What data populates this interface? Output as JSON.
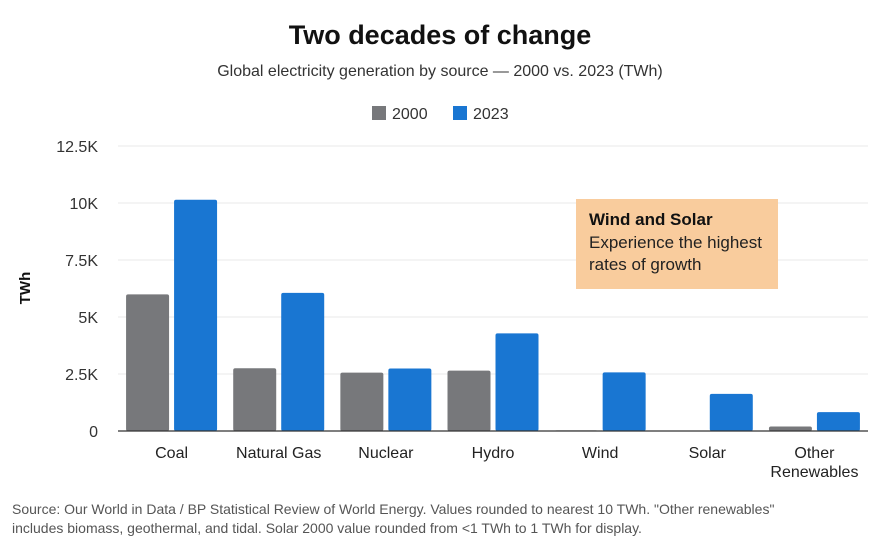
{
  "chart_data": {
    "type": "bar",
    "title": "Two decades of change",
    "subtitle": "Global electricity generation by source — 2000 vs. 2023 (TWh)",
    "ylabel": "TWh",
    "xlabel": "",
    "ylim": [
      0,
      12500
    ],
    "yticks": [
      {
        "value": 0,
        "label": "0"
      },
      {
        "value": 2500,
        "label": "2.5K"
      },
      {
        "value": 5000,
        "label": "5K"
      },
      {
        "value": 7500,
        "label": "7.5K"
      },
      {
        "value": 10000,
        "label": "10K"
      },
      {
        "value": 12500,
        "label": "12.5K"
      }
    ],
    "categories": [
      "Coal",
      "Natural Gas",
      "Nuclear",
      "Hydro",
      "Wind",
      "Solar",
      "Other Renewables"
    ],
    "category_lines": [
      [
        "Coal"
      ],
      [
        "Natural Gas"
      ],
      [
        "Nuclear"
      ],
      [
        "Hydro"
      ],
      [
        "Wind"
      ],
      [
        "Solar"
      ],
      [
        "Other",
        "Renewables"
      ]
    ],
    "series": [
      {
        "name": "2000",
        "color": "#77787b",
        "values": [
          5990,
          2750,
          2560,
          2650,
          30,
          1,
          200
        ]
      },
      {
        "name": "2023",
        "color": "#1976d2",
        "values": [
          10140,
          6060,
          2740,
          4280,
          2570,
          1630,
          830
        ]
      }
    ],
    "grid": true,
    "legend_position": "top-center",
    "annotation": {
      "title": "Wind and Solar",
      "lines": [
        "Experience the highest",
        "rates of growth"
      ],
      "color": "#f9cc9d"
    },
    "source_lines": [
      "Source: Our World in Data / BP Statistical Review of World Energy. Values rounded to nearest 10 TWh. \"Other renewables\"",
      "includes biomass, geothermal, and tidal. Solar 2000 value rounded from <1 TWh to 1 TWh for display."
    ]
  }
}
